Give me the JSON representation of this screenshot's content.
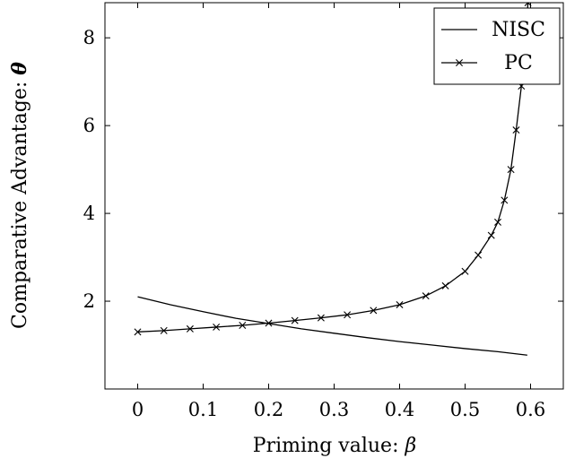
{
  "chart_data": {
    "type": "line",
    "xlabel_text": "Priming value: ",
    "xlabel_symbol": "β",
    "ylabel_text": "Comparative Advantage: ",
    "ylabel_symbol": "θ",
    "xlim": [
      -0.05,
      0.65
    ],
    "ylim": [
      0,
      8.8
    ],
    "xticks": [
      0,
      0.1,
      0.2,
      0.3,
      0.4,
      0.5,
      0.6
    ],
    "xtick_labels": [
      "0",
      "0.1",
      "0.2",
      "0.3",
      "0.4",
      "0.5",
      "0.6"
    ],
    "yticks": [
      2,
      4,
      6,
      8
    ],
    "ytick_labels": [
      "2",
      "4",
      "6",
      "8"
    ],
    "grid": false,
    "legend_position": "top-right",
    "series": [
      {
        "name": "NISC",
        "marker": "none",
        "color": "#000000",
        "x": [
          0,
          0.05,
          0.1,
          0.15,
          0.2,
          0.25,
          0.3,
          0.35,
          0.4,
          0.45,
          0.5,
          0.55,
          0.595
        ],
        "y": [
          2.1,
          1.92,
          1.76,
          1.61,
          1.49,
          1.37,
          1.27,
          1.17,
          1.08,
          1.0,
          0.92,
          0.85,
          0.77
        ]
      },
      {
        "name": "PC",
        "marker": "x",
        "color": "#000000",
        "x": [
          0,
          0.04,
          0.08,
          0.12,
          0.16,
          0.2,
          0.24,
          0.28,
          0.32,
          0.36,
          0.4,
          0.44,
          0.47,
          0.5,
          0.52,
          0.54,
          0.55,
          0.56,
          0.57,
          0.578,
          0.586,
          0.592,
          0.596
        ],
        "y": [
          1.3,
          1.33,
          1.37,
          1.41,
          1.45,
          1.5,
          1.56,
          1.62,
          1.69,
          1.79,
          1.92,
          2.12,
          2.35,
          2.68,
          3.05,
          3.5,
          3.8,
          4.3,
          5.0,
          5.9,
          6.9,
          7.8,
          8.8
        ]
      }
    ]
  }
}
